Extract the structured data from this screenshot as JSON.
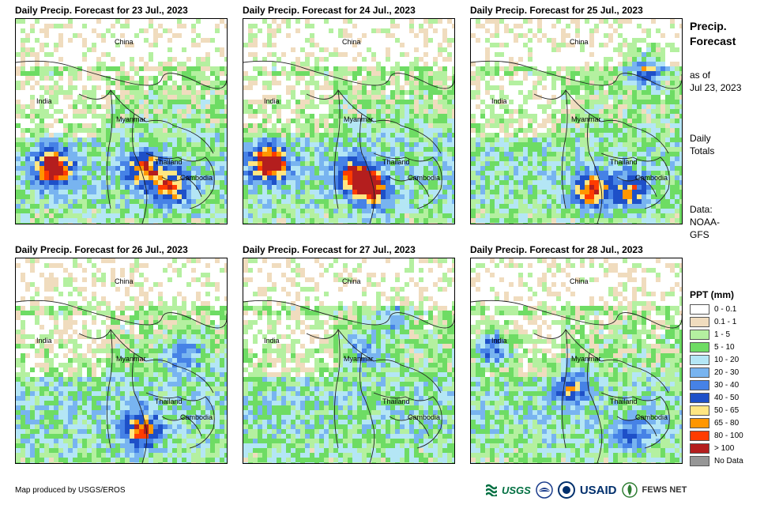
{
  "panels": [
    {
      "title": "Daily Precip. Forecast for 23 Jul., 2023"
    },
    {
      "title": "Daily Precip. Forecast for 24 Jul., 2023"
    },
    {
      "title": "Daily Precip. Forecast for 25 Jul., 2023"
    },
    {
      "title": "Daily Precip. Forecast for 26 Jul., 2023"
    },
    {
      "title": "Daily Precip. Forecast for 27 Jul., 2023"
    },
    {
      "title": "Daily Precip. Forecast for 28 Jul., 2023"
    }
  ],
  "map_labels": {
    "china": "China",
    "india": "India",
    "myanmar": "Myanmar",
    "thailand": "Thailand",
    "cambodia": "Cambodia"
  },
  "sidebar": {
    "title_line1": "Precip.",
    "title_line2": "Forecast",
    "asof_line1": "as of",
    "asof_line2": "Jul 23, 2023",
    "totals_line1": "Daily",
    "totals_line2": "Totals",
    "data_line1": "Data:",
    "data_line2": "NOAA-",
    "data_line3": "GFS"
  },
  "legend": {
    "title": "PPT (mm)",
    "items": [
      {
        "label": "0 - 0.1",
        "color": "#ffffff"
      },
      {
        "label": "0.1 - 1",
        "color": "#f0dcbe"
      },
      {
        "label": "1 - 5",
        "color": "#b4f0a0"
      },
      {
        "label": "5 - 10",
        "color": "#6edc64"
      },
      {
        "label": "10 - 20",
        "color": "#b4e6f5"
      },
      {
        "label": "20 - 30",
        "color": "#78b4f0"
      },
      {
        "label": "30 - 40",
        "color": "#4682e6"
      },
      {
        "label": "40 - 50",
        "color": "#1e50c8"
      },
      {
        "label": "50 - 65",
        "color": "#ffe682"
      },
      {
        "label": "65 - 80",
        "color": "#ff9600"
      },
      {
        "label": "80 - 100",
        "color": "#ff3c00"
      },
      {
        "label": "> 100",
        "color": "#b41e1e"
      },
      {
        "label": "No Data",
        "color": "#969696"
      }
    ]
  },
  "credit": "Map produced by USGS/EROS",
  "logos": {
    "usgs": "USGS",
    "usaid": "USAID",
    "fewsnet": "FEWS NET"
  }
}
